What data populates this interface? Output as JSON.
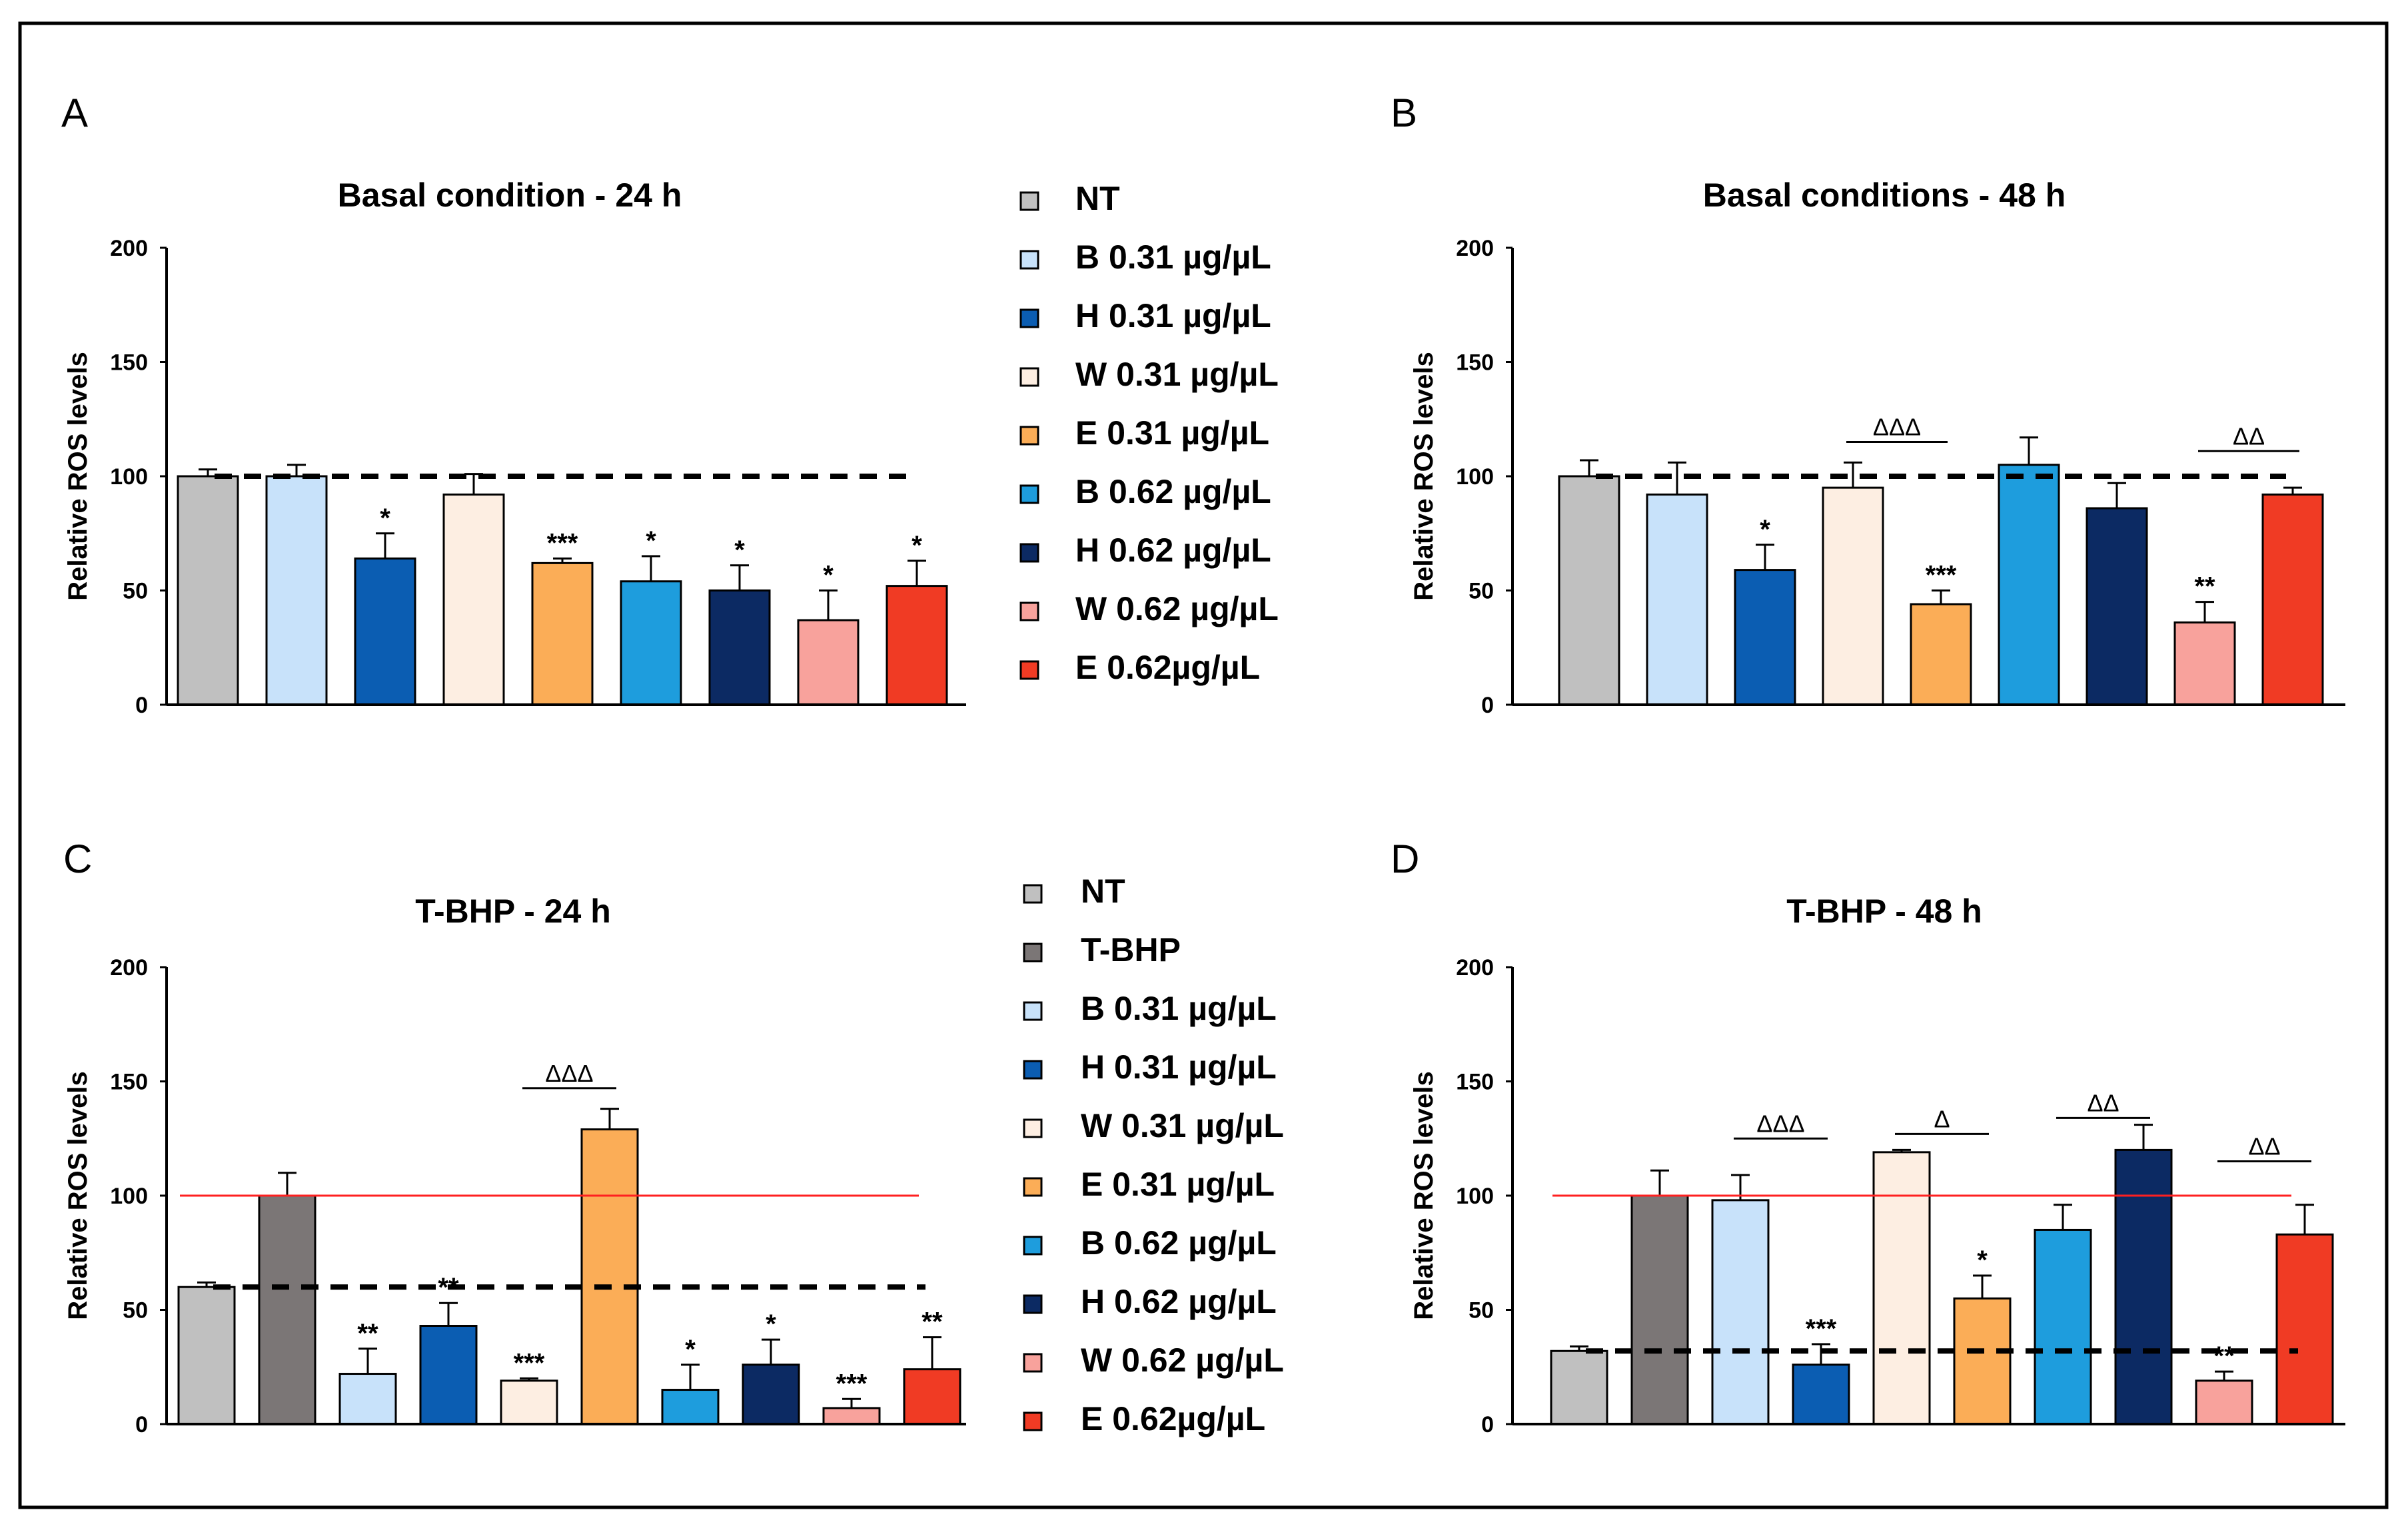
{
  "figure": {
    "legend_top": [
      "NT",
      "B 0.31 µg/µL",
      "H 0.31 µg/µL",
      "W 0.31 µg/µL",
      "E 0.31 µg/µL",
      "B 0.62 µg/µL",
      "H 0.62 µg/µL",
      "W 0.62 µg/µL",
      "E 0.62µg/µL"
    ],
    "legend_bottom": [
      "NT",
      "T-BHP",
      "B 0.31 µg/µL",
      "H 0.31 µg/µL",
      "W 0.31 µg/µL",
      "E 0.31 µg/µL",
      "B 0.62 µg/µL",
      "H 0.62 µg/µL",
      "W 0.62 µg/µL",
      "E 0.62µg/µL"
    ],
    "colors": {
      "NT": "#c0c0c0",
      "T-BHP": "#7b7676",
      "B031": "#c8e2fa",
      "H031": "#0b5db2",
      "W031": "#fdeee2",
      "E031": "#fbad57",
      "B062": "#1e9ddd",
      "H062": "#0c2a63",
      "W062": "#f8a29c",
      "E062": "#f03b24",
      "ref_line": "#ff2020"
    }
  },
  "chart_data": [
    {
      "panel": "A",
      "type": "bar",
      "title": "Basal condition - 24 h",
      "ylabel": "Relative ROS levels",
      "ylim": [
        0,
        200
      ],
      "yticks": [
        "0",
        "50",
        "100",
        "150",
        "200"
      ],
      "categories": [
        "NT",
        "B 0.31",
        "H 0.31",
        "W 0.31",
        "E 0.31",
        "B 0.62",
        "H 0.62",
        "W 0.62",
        "E 0.62"
      ],
      "color_keys": [
        "NT",
        "B031",
        "H031",
        "W031",
        "E031",
        "B062",
        "H062",
        "W062",
        "E062"
      ],
      "values": [
        100,
        100,
        64,
        92,
        62,
        54,
        50,
        37,
        52
      ],
      "errors": [
        3,
        5,
        11,
        9,
        2,
        11,
        11,
        13,
        11
      ],
      "stars": [
        "",
        "",
        "*",
        "",
        "***",
        "*",
        "*",
        "*",
        "*"
      ],
      "dashed_line": 100,
      "red_line": null,
      "brackets": []
    },
    {
      "panel": "B",
      "type": "bar",
      "title": "Basal conditions - 48 h",
      "ylabel": "Relative ROS levels",
      "ylim": [
        0,
        200
      ],
      "yticks": [
        "0",
        "50",
        "100",
        "150",
        "200"
      ],
      "categories": [
        "NT",
        "B 0.31",
        "H 0.31",
        "W 0.31",
        "E 0.31",
        "B 0.62",
        "H 0.62",
        "W 0.62",
        "E 0.62"
      ],
      "color_keys": [
        "NT",
        "B031",
        "H031",
        "W031",
        "E031",
        "B062",
        "H062",
        "W062",
        "E062"
      ],
      "values": [
        100,
        92,
        59,
        95,
        44,
        105,
        86,
        36,
        92
      ],
      "errors": [
        7,
        14,
        11,
        11,
        6,
        12,
        11,
        9,
        3
      ],
      "stars": [
        "",
        "",
        "*",
        "",
        "***",
        "",
        "",
        "**",
        ""
      ],
      "dashed_line": 100,
      "red_line": null,
      "brackets": [
        {
          "from": 3,
          "to": 4,
          "label": "ΔΔΔ",
          "y": 115
        },
        {
          "from": 7,
          "to": 8,
          "label": "ΔΔ",
          "y": 111
        }
      ]
    },
    {
      "panel": "C",
      "type": "bar",
      "title": "T-BHP - 24 h",
      "ylabel": "Relative ROS levels",
      "ylim": [
        0,
        200
      ],
      "yticks": [
        "0",
        "50",
        "100",
        "150",
        "200"
      ],
      "categories": [
        "NT",
        "T-BHP",
        "B 0.31",
        "H 0.31",
        "W 0.31",
        "E 0.31",
        "B 0.62",
        "H 0.62",
        "W 0.62",
        "E 0.62"
      ],
      "color_keys": [
        "NT",
        "T-BHP",
        "B031",
        "H031",
        "W031",
        "E031",
        "B062",
        "H062",
        "W062",
        "E062"
      ],
      "values": [
        60,
        100,
        22,
        43,
        19,
        129,
        15,
        26,
        7,
        24
      ],
      "errors": [
        2,
        10,
        11,
        10,
        1,
        9,
        11,
        11,
        4,
        14
      ],
      "stars": [
        "",
        "",
        "**",
        "**",
        "***",
        "",
        "*",
        "*",
        "***",
        "**"
      ],
      "dashed_line": 60,
      "red_line": 100,
      "brackets": [
        {
          "from": 4,
          "to": 5,
          "label": "ΔΔΔ",
          "y": 147
        }
      ]
    },
    {
      "panel": "D",
      "type": "bar",
      "title": "T-BHP - 48 h",
      "ylabel": "Relative ROS levels",
      "ylim": [
        0,
        200
      ],
      "yticks": [
        "0",
        "50",
        "100",
        "150",
        "200"
      ],
      "categories": [
        "NT",
        "T-BHP",
        "B 0.31",
        "H 0.31",
        "W 0.31",
        "E 0.31",
        "B 0.62",
        "H 0.62",
        "W 0.62",
        "E 0.62"
      ],
      "color_keys": [
        "NT",
        "T-BHP",
        "B031",
        "H031",
        "W031",
        "E031",
        "B062",
        "H062",
        "W062",
        "E062"
      ],
      "values": [
        32,
        100,
        98,
        26,
        119,
        55,
        85,
        120,
        19,
        83
      ],
      "errors": [
        2,
        11,
        11,
        9,
        1,
        10,
        11,
        11,
        4,
        13
      ],
      "stars": [
        "",
        "",
        "",
        "***",
        "",
        "*",
        "",
        "",
        "**",
        ""
      ],
      "dashed_line": 32,
      "red_line": 100,
      "brackets": [
        {
          "from": 2,
          "to": 3,
          "label": "ΔΔΔ",
          "y": 125
        },
        {
          "from": 4,
          "to": 5,
          "label": "Δ",
          "y": 127
        },
        {
          "from": 6,
          "to": 7,
          "label": "ΔΔ",
          "y": 134
        },
        {
          "from": 8,
          "to": 9,
          "label": "ΔΔ",
          "y": 115
        }
      ]
    }
  ]
}
